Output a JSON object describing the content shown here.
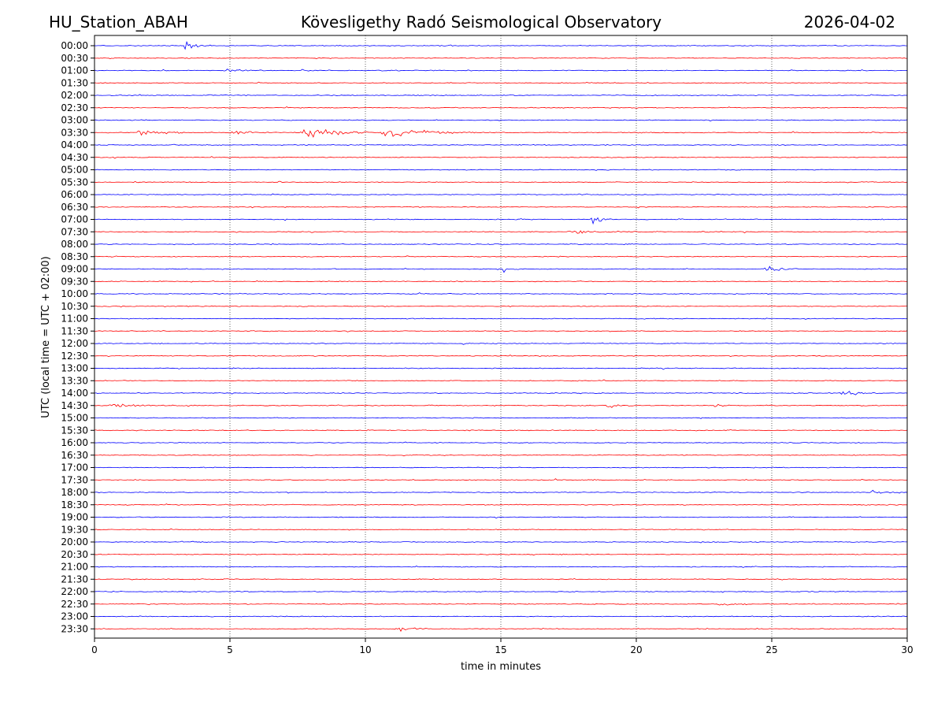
{
  "header": {
    "station": "HU_Station_ABAH",
    "observatory": "Kövesligethy Radó Seismological Observatory",
    "date": "2026-04-02"
  },
  "chart_data": {
    "type": "line",
    "title": "Kövesligethy Radó Seismological Observatory",
    "xlabel": "time in minutes",
    "ylabel": "UTC (local time = UTC + 02:00)",
    "xlim": [
      0,
      30
    ],
    "xticks": [
      0,
      5,
      10,
      15,
      20,
      25,
      30
    ],
    "xtick_labels": [
      "0",
      "5",
      "10",
      "15",
      "20",
      "25",
      "30"
    ],
    "grid": "vertical dotted at x ticks",
    "colors": {
      "even_rows": "#0000ff",
      "odd_rows": "#ff0000"
    },
    "rows": [
      "00:00",
      "00:30",
      "01:00",
      "01:30",
      "02:00",
      "02:30",
      "03:00",
      "03:30",
      "04:00",
      "04:30",
      "05:00",
      "05:30",
      "06:00",
      "06:30",
      "07:00",
      "07:30",
      "08:00",
      "08:30",
      "09:00",
      "09:30",
      "10:00",
      "10:30",
      "11:00",
      "11:30",
      "12:00",
      "12:30",
      "13:00",
      "13:30",
      "14:00",
      "14:30",
      "15:00",
      "15:30",
      "16:00",
      "16:30",
      "17:00",
      "17:30",
      "18:00",
      "18:30",
      "19:00",
      "19:30",
      "20:00",
      "20:30",
      "21:00",
      "21:30",
      "22:00",
      "22:30",
      "23:00",
      "23:30"
    ],
    "baseline_noise": 0.05,
    "events": [
      {
        "row": 0,
        "start": 3.3,
        "duration": 1.0,
        "amplitude": 0.75
      },
      {
        "row": 2,
        "start": 4.7,
        "duration": 1.6,
        "amplitude": 0.22
      },
      {
        "row": 2,
        "start": 7.6,
        "duration": 1.2,
        "amplitude": 0.15
      },
      {
        "row": 7,
        "start": 1.5,
        "duration": 1.8,
        "amplitude": 0.55
      },
      {
        "row": 7,
        "start": 5.0,
        "duration": 1.3,
        "amplitude": 0.3
      },
      {
        "row": 7,
        "start": 7.6,
        "duration": 2.5,
        "amplitude": 1.0
      },
      {
        "row": 7,
        "start": 10.5,
        "duration": 3.5,
        "amplitude": 0.6
      },
      {
        "row": 14,
        "start": 18.3,
        "duration": 1.0,
        "amplitude": 0.75
      },
      {
        "row": 15,
        "start": 17.4,
        "duration": 2.6,
        "amplitude": 0.2
      },
      {
        "row": 18,
        "start": 15.0,
        "duration": 0.8,
        "amplitude": 0.4
      },
      {
        "row": 18,
        "start": 24.7,
        "duration": 1.4,
        "amplitude": 0.3
      },
      {
        "row": 28,
        "start": 27.5,
        "duration": 1.4,
        "amplitude": 0.45
      },
      {
        "row": 29,
        "start": 0.5,
        "duration": 2.5,
        "amplitude": 0.3
      },
      {
        "row": 29,
        "start": 18.7,
        "duration": 1.2,
        "amplitude": 0.4
      },
      {
        "row": 29,
        "start": 22.8,
        "duration": 1.0,
        "amplitude": 0.2
      },
      {
        "row": 36,
        "start": 28.6,
        "duration": 1.4,
        "amplitude": 0.18
      },
      {
        "row": 45,
        "start": 22.9,
        "duration": 1.6,
        "amplitude": 0.25
      },
      {
        "row": 47,
        "start": 11.1,
        "duration": 1.3,
        "amplitude": 0.3
      }
    ]
  }
}
